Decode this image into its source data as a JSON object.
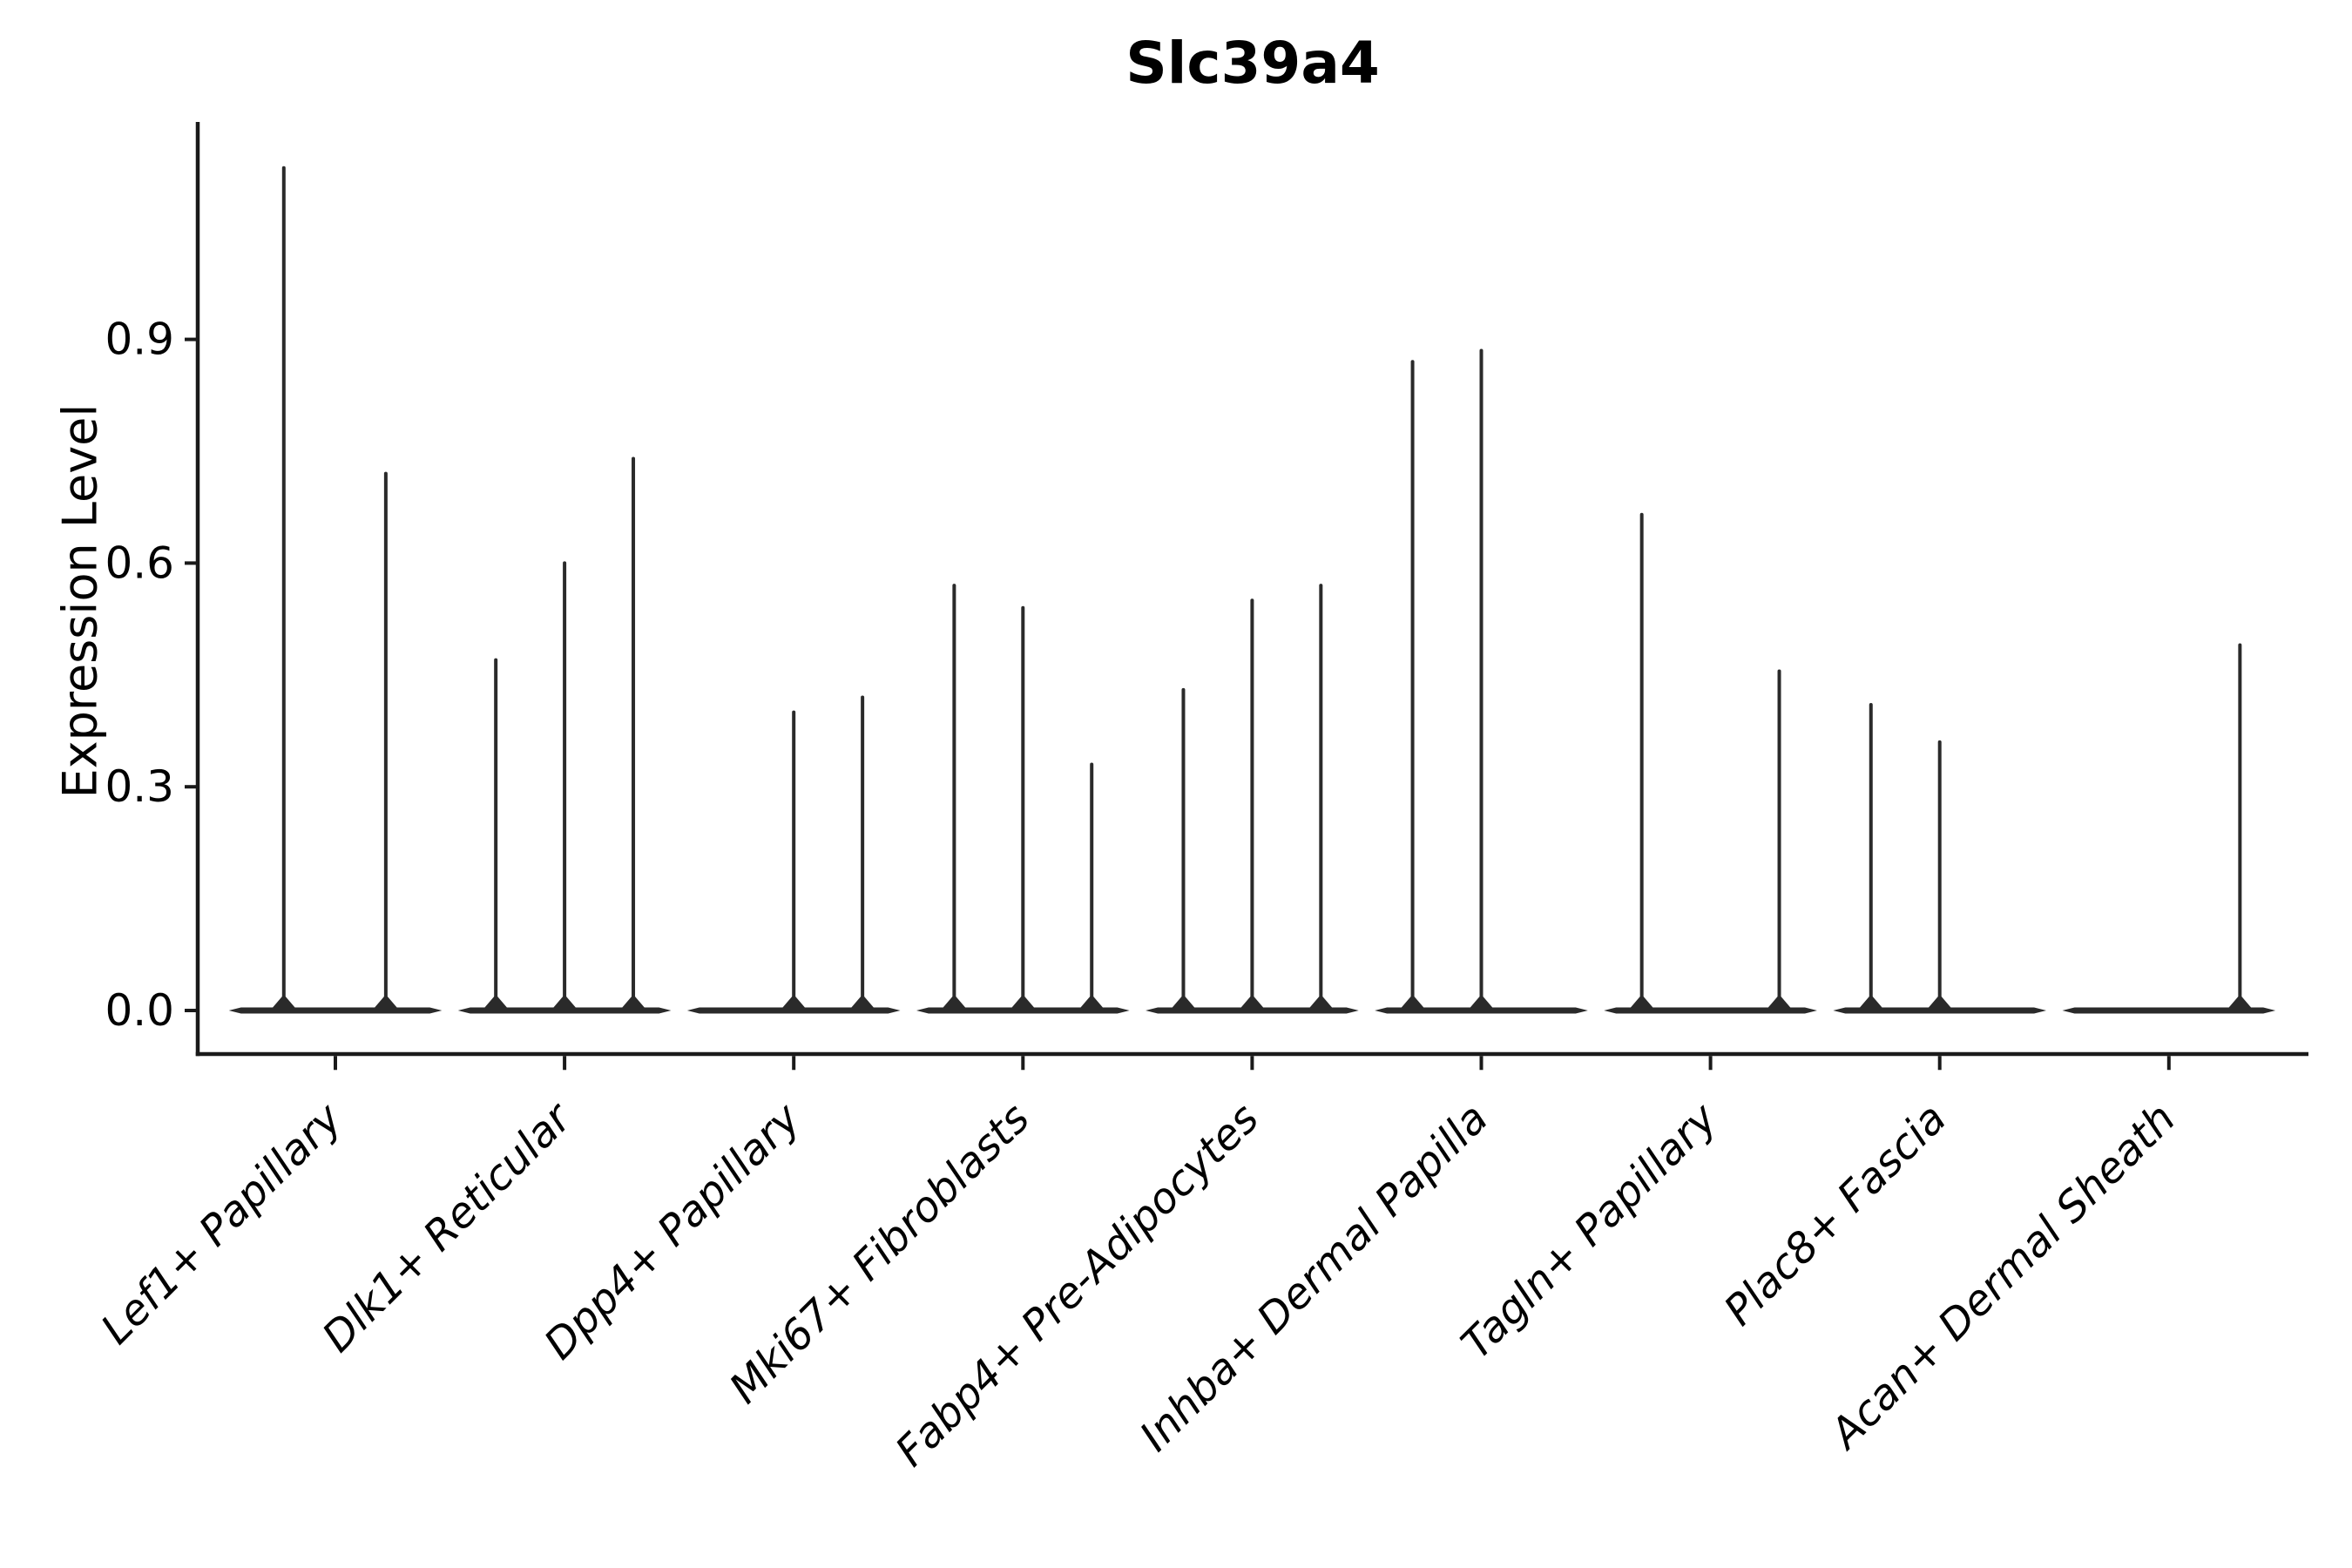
{
  "figure": {
    "background": "#ffffff",
    "text_color": "#000000",
    "axis_color": "#1a1a1a",
    "violin_color": "#2a2a2a"
  },
  "chart_data": {
    "type": "violin",
    "title": "Slc39a4",
    "ylabel": "Expression Level",
    "xlabel": "",
    "grid": false,
    "legend": null,
    "ylim": [
      -0.058,
      1.192
    ],
    "ytick_values": [
      0.0,
      0.3,
      0.6,
      0.9
    ],
    "ytick_labels": [
      "0.0",
      "0.3",
      "0.6",
      "0.9"
    ],
    "x_label_rotation_deg": 45,
    "x_label_style": "italic",
    "base_halfwidth": 0.465,
    "categories": [
      "Lef1+ Papillary",
      "Dlk1+ Reticular",
      "Dpp4+ Papillary",
      "Mki67+ Fibroblasts",
      "Fabp4+ Pre-Adipocytes",
      "Inhba+ Dermal Papilla",
      "Tagln+ Papillary",
      "Plac8+ Fascia",
      "Acan+ Dermal Sheath"
    ],
    "series": [
      {
        "category": "Lef1+ Papillary",
        "spikes": [
          {
            "offset": -0.225,
            "peak": 1.13
          },
          {
            "offset": 0.22,
            "peak": 0.72
          }
        ]
      },
      {
        "category": "Dlk1+ Reticular",
        "spikes": [
          {
            "offset": -0.3,
            "peak": 0.47
          },
          {
            "offset": 0.0,
            "peak": 0.6
          },
          {
            "offset": 0.3,
            "peak": 0.74
          }
        ]
      },
      {
        "category": "Dpp4+ Papillary",
        "spikes": [
          {
            "offset": 0.0,
            "peak": 0.4
          },
          {
            "offset": 0.3,
            "peak": 0.42
          }
        ]
      },
      {
        "category": "Mki67+ Fibroblasts",
        "spikes": [
          {
            "offset": -0.3,
            "peak": 0.57
          },
          {
            "offset": 0.0,
            "peak": 0.54
          },
          {
            "offset": 0.3,
            "peak": 0.33
          }
        ]
      },
      {
        "category": "Fabp4+ Pre-Adipocytes",
        "spikes": [
          {
            "offset": -0.3,
            "peak": 0.43
          },
          {
            "offset": 0.0,
            "peak": 0.55
          },
          {
            "offset": 0.3,
            "peak": 0.57
          }
        ]
      },
      {
        "category": "Inhba+ Dermal Papilla",
        "spikes": [
          {
            "offset": -0.3,
            "peak": 0.87
          },
          {
            "offset": 0.0,
            "peak": 0.885
          }
        ]
      },
      {
        "category": "Tagln+ Papillary",
        "spikes": [
          {
            "offset": -0.3,
            "peak": 0.665
          },
          {
            "offset": 0.3,
            "peak": 0.455
          }
        ]
      },
      {
        "category": "Plac8+ Fascia",
        "spikes": [
          {
            "offset": -0.3,
            "peak": 0.41
          },
          {
            "offset": 0.0,
            "peak": 0.36
          }
        ]
      },
      {
        "category": "Acan+ Dermal Sheath",
        "spikes": [
          {
            "offset": 0.31,
            "peak": 0.49
          }
        ]
      }
    ]
  }
}
